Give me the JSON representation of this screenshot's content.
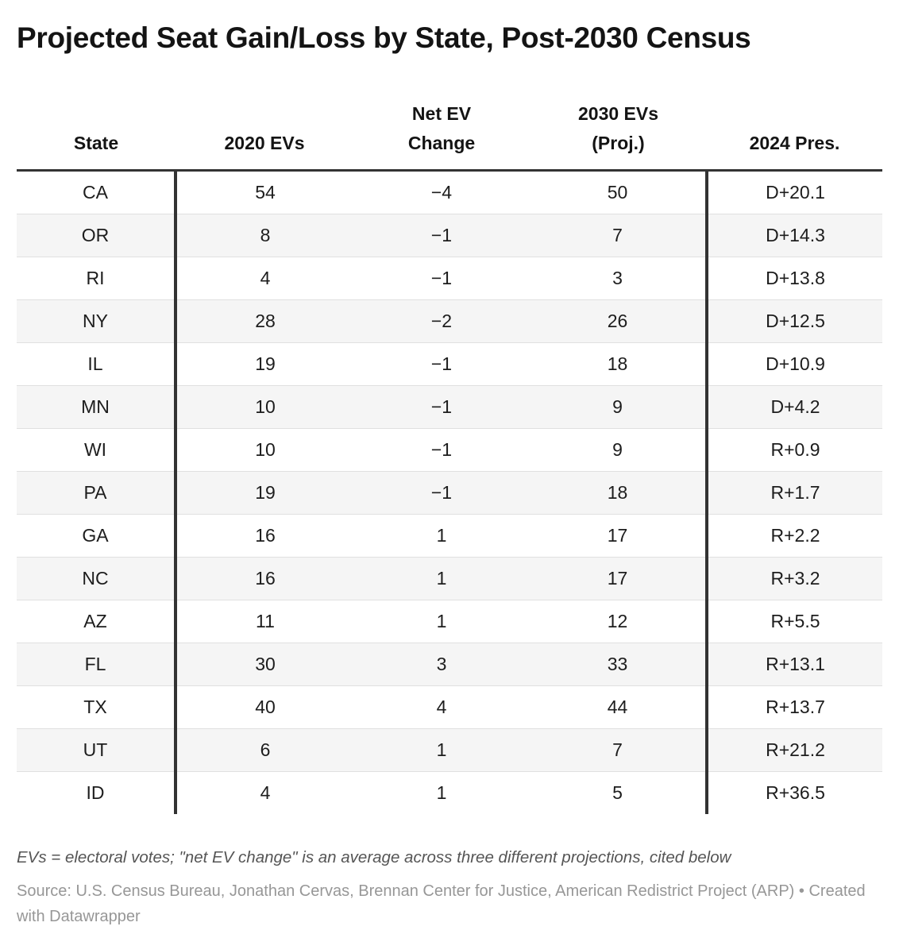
{
  "chart_data": {
    "type": "table",
    "title": "Projected Seat Gain/Loss by State, Post-2030 Census",
    "columns": [
      "State",
      "2020 EVs",
      "Net EV\nChange",
      "2030 EVs\n(Proj.)",
      "2024 Pres."
    ],
    "rows": [
      [
        "CA",
        "54",
        "−4",
        "50",
        "D+20.1"
      ],
      [
        "OR",
        "8",
        "−1",
        "7",
        "D+14.3"
      ],
      [
        "RI",
        "4",
        "−1",
        "3",
        "D+13.8"
      ],
      [
        "NY",
        "28",
        "−2",
        "26",
        "D+12.5"
      ],
      [
        "IL",
        "19",
        "−1",
        "18",
        "D+10.9"
      ],
      [
        "MN",
        "10",
        "−1",
        "9",
        "D+4.2"
      ],
      [
        "WI",
        "10",
        "−1",
        "9",
        "R+0.9"
      ],
      [
        "PA",
        "19",
        "−1",
        "18",
        "R+1.7"
      ],
      [
        "GA",
        "16",
        "1",
        "17",
        "R+2.2"
      ],
      [
        "NC",
        "16",
        "1",
        "17",
        "R+3.2"
      ],
      [
        "AZ",
        "11",
        "1",
        "12",
        "R+5.5"
      ],
      [
        "FL",
        "30",
        "3",
        "33",
        "R+13.1"
      ],
      [
        "TX",
        "40",
        "4",
        "44",
        "R+13.7"
      ],
      [
        "UT",
        "6",
        "1",
        "7",
        "R+21.2"
      ],
      [
        "ID",
        "4",
        "1",
        "5",
        "R+36.5"
      ]
    ],
    "layout": {
      "striped_rows": true,
      "cell_alignment": "center",
      "header_rule": true,
      "column_dividers_after": [
        "State"
      ],
      "column_dividers_before": [
        "2024 Pres."
      ]
    }
  },
  "footer": {
    "footnote": "EVs = electoral votes; \"net EV change\" is an average across three different projections, cited below",
    "source": "Source: U.S. Census Bureau, Jonathan Cervas, Brennan Center for Justice, American Redistrict Project (ARP)",
    "separator": "•",
    "attribution": "Created with Datawrapper"
  },
  "colors": {
    "background": "#ffffff",
    "title_text": "#141414",
    "body_text": "#1d1d1d",
    "header_rule": "#333333",
    "column_divider": "#333333",
    "row_stripe": "#f5f5f5",
    "row_divider": "#e0e0e0",
    "footnote_text": "#555555",
    "source_text": "#979797"
  }
}
